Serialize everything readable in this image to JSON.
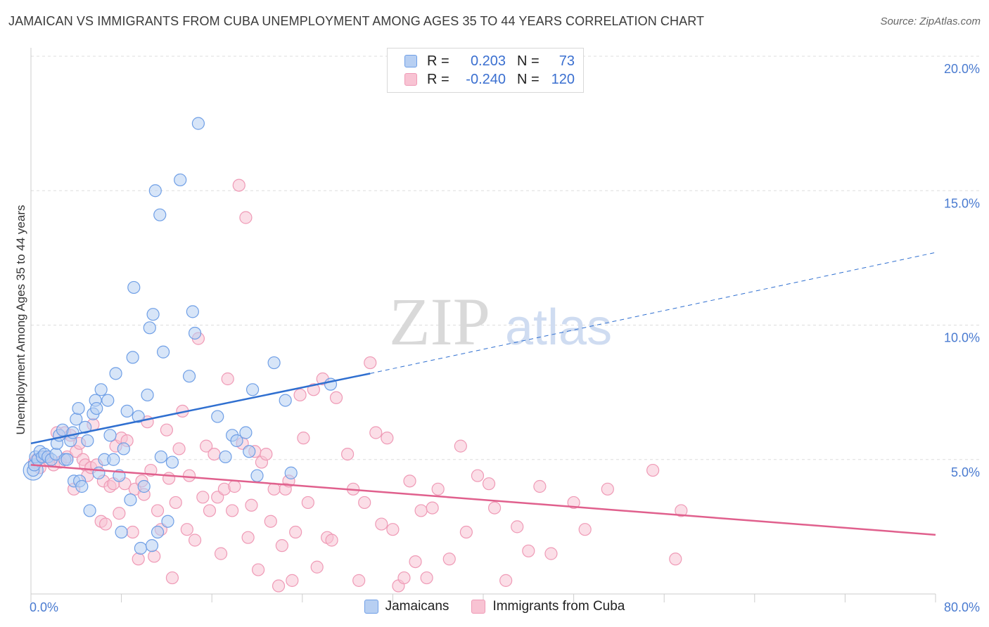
{
  "title": "JAMAICAN VS IMMIGRANTS FROM CUBA UNEMPLOYMENT AMONG AGES 35 TO 44 YEARS CORRELATION CHART",
  "source": "Source: ZipAtlas.com",
  "watermark": {
    "zip": "ZIP",
    "atlas": "atlas"
  },
  "legend": {
    "rows": [
      {
        "r_label": "R =",
        "r_value": "0.203",
        "n_label": "N =",
        "n_value": "73",
        "color": "#6f9fe6"
      },
      {
        "r_label": "R =",
        "r_value": "-0.240",
        "n_label": "N =",
        "n_value": "120",
        "color": "#ef9ab6"
      }
    ]
  },
  "bottom_legend": {
    "jamaicans": "Jamaicans",
    "cuba": "Immigrants from Cuba"
  },
  "colors": {
    "blue_fill": "#b7cff2",
    "blue_stroke": "#6f9fe6",
    "blue_line": "#2f6fd0",
    "pink_fill": "#f8c3d3",
    "pink_stroke": "#ef9ab6",
    "pink_line": "#e0608d",
    "grid": "#dddddd",
    "tick_text": "#4a7bd0"
  },
  "chart_data": {
    "type": "scatter",
    "title": "JAMAICAN VS IMMIGRANTS FROM CUBA UNEMPLOYMENT AMONG AGES 35 TO 44 YEARS CORRELATION CHART",
    "xlabel": "",
    "ylabel": "Unemployment Among Ages 35 to 44 years",
    "xlim": [
      0,
      80
    ],
    "ylim": [
      0,
      20
    ],
    "x_tick_labels": [
      "0.0%",
      "80.0%"
    ],
    "y_ticks": [
      5,
      10,
      15,
      20
    ],
    "y_tick_labels": [
      "5.0%",
      "10.0%",
      "15.0%",
      "20.0%"
    ],
    "grid": true,
    "legend_placement": "top-center",
    "series": [
      {
        "name": "Jamaicans",
        "r": 0.203,
        "n": 73,
        "trend": {
          "x_solid": [
            0,
            30
          ],
          "y_solid": [
            5.6,
            8.2
          ],
          "x_dashed": [
            30,
            80
          ],
          "y_dashed": [
            8.2,
            12.7
          ]
        },
        "points": [
          [
            0.2,
            4.6
          ],
          [
            0.3,
            4.8
          ],
          [
            0.4,
            5.1
          ],
          [
            0.6,
            5.0
          ],
          [
            0.8,
            5.3
          ],
          [
            1.0,
            5.1
          ],
          [
            1.2,
            5.2
          ],
          [
            1.5,
            5.1
          ],
          [
            1.8,
            5.0
          ],
          [
            2.2,
            5.2
          ],
          [
            2.3,
            5.6
          ],
          [
            2.5,
            5.9
          ],
          [
            2.8,
            6.1
          ],
          [
            3.0,
            5.0
          ],
          [
            3.2,
            5.0
          ],
          [
            3.5,
            5.7
          ],
          [
            3.7,
            6.0
          ],
          [
            3.8,
            4.2
          ],
          [
            4.0,
            6.5
          ],
          [
            4.2,
            6.9
          ],
          [
            4.3,
            4.2
          ],
          [
            4.5,
            4.0
          ],
          [
            4.8,
            6.2
          ],
          [
            5.0,
            5.7
          ],
          [
            5.2,
            3.1
          ],
          [
            5.5,
            6.7
          ],
          [
            5.7,
            7.2
          ],
          [
            5.8,
            6.9
          ],
          [
            6.0,
            4.5
          ],
          [
            6.2,
            7.6
          ],
          [
            6.5,
            5.0
          ],
          [
            6.8,
            7.2
          ],
          [
            7.0,
            5.9
          ],
          [
            7.3,
            5.0
          ],
          [
            7.5,
            8.2
          ],
          [
            7.8,
            4.4
          ],
          [
            8.0,
            2.3
          ],
          [
            8.2,
            5.4
          ],
          [
            8.5,
            6.8
          ],
          [
            8.8,
            3.5
          ],
          [
            9.0,
            8.8
          ],
          [
            9.1,
            11.4
          ],
          [
            9.5,
            6.6
          ],
          [
            9.7,
            1.7
          ],
          [
            10.0,
            4.0
          ],
          [
            10.3,
            7.4
          ],
          [
            10.5,
            9.9
          ],
          [
            10.7,
            1.8
          ],
          [
            10.8,
            10.4
          ],
          [
            11.0,
            15.0
          ],
          [
            11.2,
            2.3
          ],
          [
            11.4,
            14.1
          ],
          [
            11.5,
            5.1
          ],
          [
            11.7,
            9.0
          ],
          [
            12.1,
            2.7
          ],
          [
            12.5,
            4.9
          ],
          [
            13.2,
            15.4
          ],
          [
            14.0,
            8.1
          ],
          [
            14.3,
            10.5
          ],
          [
            14.5,
            9.7
          ],
          [
            14.8,
            17.5
          ],
          [
            16.5,
            6.6
          ],
          [
            17.2,
            5.1
          ],
          [
            17.8,
            5.9
          ],
          [
            18.2,
            5.7
          ],
          [
            19.0,
            6.0
          ],
          [
            19.3,
            5.3
          ],
          [
            19.6,
            7.6
          ],
          [
            20.0,
            4.4
          ],
          [
            21.5,
            8.6
          ],
          [
            22.5,
            7.2
          ],
          [
            23.0,
            4.5
          ],
          [
            26.5,
            7.8
          ]
        ]
      },
      {
        "name": "Immigrants from Cuba",
        "r": -0.24,
        "n": 120,
        "trend": {
          "x": [
            0,
            80
          ],
          "y": [
            4.8,
            2.2
          ]
        },
        "points": [
          [
            0.3,
            4.9
          ],
          [
            0.5,
            5.0
          ],
          [
            0.8,
            4.7
          ],
          [
            1.2,
            5.1
          ],
          [
            1.5,
            5.0
          ],
          [
            2.0,
            4.8
          ],
          [
            2.3,
            6.0
          ],
          [
            2.6,
            4.9
          ],
          [
            3.0,
            6.0
          ],
          [
            3.2,
            5.1
          ],
          [
            3.5,
            5.9
          ],
          [
            3.8,
            3.9
          ],
          [
            4.0,
            5.3
          ],
          [
            4.3,
            5.6
          ],
          [
            4.6,
            5.0
          ],
          [
            4.8,
            4.8
          ],
          [
            5.0,
            4.4
          ],
          [
            5.3,
            4.7
          ],
          [
            5.5,
            6.3
          ],
          [
            5.8,
            4.8
          ],
          [
            6.2,
            2.7
          ],
          [
            6.4,
            4.2
          ],
          [
            6.6,
            2.6
          ],
          [
            7.0,
            4.0
          ],
          [
            7.3,
            4.1
          ],
          [
            7.5,
            5.5
          ],
          [
            7.8,
            3.0
          ],
          [
            8.0,
            5.8
          ],
          [
            8.3,
            4.1
          ],
          [
            8.5,
            5.7
          ],
          [
            9.0,
            2.3
          ],
          [
            9.2,
            3.9
          ],
          [
            9.5,
            1.3
          ],
          [
            9.8,
            4.2
          ],
          [
            10.0,
            3.7
          ],
          [
            10.3,
            6.4
          ],
          [
            10.6,
            4.6
          ],
          [
            10.9,
            1.4
          ],
          [
            11.2,
            3.1
          ],
          [
            11.5,
            2.4
          ],
          [
            12.0,
            6.1
          ],
          [
            12.2,
            4.3
          ],
          [
            12.5,
            0.6
          ],
          [
            12.8,
            3.4
          ],
          [
            13.1,
            5.4
          ],
          [
            13.4,
            6.8
          ],
          [
            13.8,
            2.4
          ],
          [
            14.0,
            4.4
          ],
          [
            14.5,
            2.0
          ],
          [
            14.8,
            9.5
          ],
          [
            15.2,
            3.6
          ],
          [
            15.5,
            5.5
          ],
          [
            15.8,
            3.1
          ],
          [
            16.2,
            5.2
          ],
          [
            16.5,
            3.6
          ],
          [
            16.8,
            1.5
          ],
          [
            17.1,
            3.9
          ],
          [
            17.4,
            8.0
          ],
          [
            17.8,
            3.1
          ],
          [
            18.0,
            4.0
          ],
          [
            18.4,
            15.2
          ],
          [
            18.7,
            5.6
          ],
          [
            19.0,
            14.0
          ],
          [
            19.2,
            2.1
          ],
          [
            19.5,
            3.3
          ],
          [
            19.8,
            5.3
          ],
          [
            20.1,
            0.9
          ],
          [
            20.4,
            4.9
          ],
          [
            20.8,
            5.2
          ],
          [
            21.2,
            2.7
          ],
          [
            21.5,
            3.9
          ],
          [
            21.9,
            0.3
          ],
          [
            22.2,
            1.8
          ],
          [
            22.5,
            3.9
          ],
          [
            22.8,
            4.2
          ],
          [
            23.1,
            0.5
          ],
          [
            23.4,
            2.3
          ],
          [
            23.8,
            7.4
          ],
          [
            24.1,
            5.8
          ],
          [
            24.5,
            3.4
          ],
          [
            25.0,
            7.6
          ],
          [
            25.3,
            1.0
          ],
          [
            25.8,
            8.0
          ],
          [
            26.2,
            2.1
          ],
          [
            26.6,
            2.0
          ],
          [
            27.0,
            7.3
          ],
          [
            28.0,
            5.2
          ],
          [
            28.5,
            3.9
          ],
          [
            29.0,
            0.5
          ],
          [
            29.5,
            3.4
          ],
          [
            30.0,
            8.6
          ],
          [
            30.5,
            6.0
          ],
          [
            31.0,
            2.6
          ],
          [
            31.5,
            5.8
          ],
          [
            32.0,
            2.4
          ],
          [
            32.5,
            0.3
          ],
          [
            33.0,
            0.6
          ],
          [
            33.5,
            4.2
          ],
          [
            34.0,
            1.2
          ],
          [
            34.5,
            3.1
          ],
          [
            35.0,
            0.6
          ],
          [
            35.5,
            3.2
          ],
          [
            36.0,
            3.9
          ],
          [
            37.0,
            1.3
          ],
          [
            38.0,
            5.5
          ],
          [
            38.5,
            2.3
          ],
          [
            39.5,
            4.4
          ],
          [
            40.5,
            4.1
          ],
          [
            41.0,
            3.2
          ],
          [
            42.0,
            0.5
          ],
          [
            43.0,
            2.5
          ],
          [
            44.0,
            1.6
          ],
          [
            45.0,
            4.0
          ],
          [
            46.0,
            1.5
          ],
          [
            48.0,
            3.4
          ],
          [
            49.0,
            2.4
          ],
          [
            51.0,
            3.9
          ],
          [
            55.0,
            4.6
          ],
          [
            57.0,
            1.3
          ],
          [
            57.5,
            3.1
          ]
        ]
      }
    ]
  }
}
